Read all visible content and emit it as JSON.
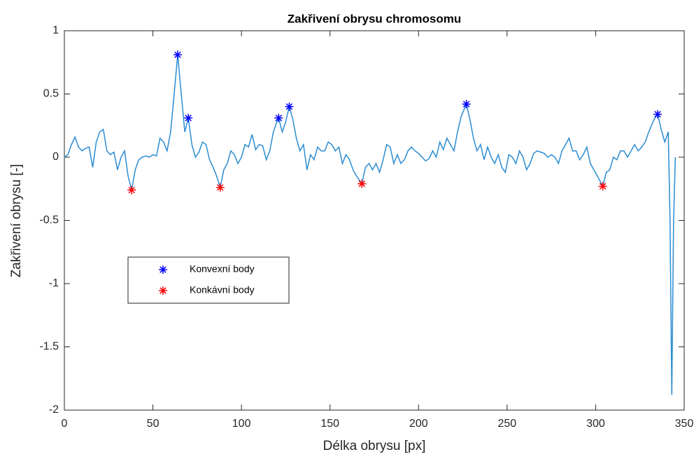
{
  "chart_data": {
    "type": "line",
    "title": "Zakřivení obrysu chromosomu",
    "xlabel": "Délka obrysu [px]",
    "ylabel": "Zakřivení obrysu [-]",
    "xlim": [
      0,
      350
    ],
    "ylim": [
      -2,
      1
    ],
    "xticks": [
      0,
      50,
      100,
      150,
      200,
      250,
      300,
      350
    ],
    "yticks": [
      1,
      0.5,
      0,
      -0.5,
      -1,
      -1.5,
      -2
    ],
    "grid": false,
    "legend": "middle left",
    "series": [
      {
        "style": "line",
        "color": "#2b8cd1",
        "x": [
          0,
          2,
          4,
          6,
          8,
          10,
          12,
          14,
          16,
          18,
          20,
          22,
          24,
          26,
          28,
          30,
          32,
          34,
          36,
          38,
          40,
          42,
          44,
          46,
          48,
          50,
          52,
          54,
          56,
          58,
          60,
          62,
          64,
          66,
          68,
          70,
          72,
          74,
          76,
          78,
          80,
          82,
          84,
          86,
          88,
          90,
          92,
          94,
          96,
          98,
          100,
          102,
          104,
          106,
          108,
          110,
          112,
          114,
          116,
          118,
          120,
          121,
          123,
          125,
          127,
          129,
          131,
          133,
          135,
          137,
          139,
          141,
          143,
          145,
          147,
          149,
          151,
          153,
          155,
          157,
          159,
          161,
          163,
          165,
          168,
          170,
          172,
          174,
          176,
          178,
          180,
          182,
          184,
          186,
          188,
          190,
          192,
          194,
          196,
          198,
          200,
          202,
          204,
          206,
          208,
          210,
          212,
          214,
          216,
          218,
          220,
          222,
          224,
          227,
          229,
          231,
          233,
          235,
          237,
          239,
          241,
          243,
          245,
          247,
          249,
          251,
          253,
          255,
          257,
          259,
          261,
          263,
          265,
          267,
          269,
          271,
          273,
          275,
          277,
          279,
          281,
          283,
          285,
          287,
          289,
          291,
          293,
          295,
          297,
          299,
          301,
          304,
          306,
          308,
          310,
          312,
          314,
          316,
          318,
          320,
          322,
          324,
          326,
          328,
          330,
          333,
          335,
          337,
          339,
          341,
          342,
          343,
          344,
          345
        ],
        "values": [
          0,
          0.02,
          0.1,
          0.16,
          0.08,
          0.05,
          0.07,
          0.08,
          -0.08,
          0.12,
          0.2,
          0.22,
          0.05,
          0.02,
          0.04,
          -0.1,
          0,
          0.05,
          -0.15,
          -0.26,
          -0.1,
          -0.02,
          0,
          0.01,
          0,
          0.02,
          0.01,
          0.15,
          0.12,
          0.05,
          0.2,
          0.5,
          0.81,
          0.5,
          0.2,
          0.31,
          0.1,
          0,
          0.04,
          0.12,
          0.1,
          -0.02,
          -0.08,
          -0.15,
          -0.24,
          -0.1,
          -0.05,
          0.05,
          0.02,
          -0.05,
          0,
          0.1,
          0.08,
          0.18,
          0.06,
          0.1,
          0.09,
          -0.02,
          0.05,
          0.2,
          0.28,
          0.31,
          0.2,
          0.28,
          0.4,
          0.3,
          0.15,
          0.05,
          0.1,
          -0.1,
          0.02,
          -0.02,
          0.08,
          0.05,
          0.05,
          0.12,
          0.1,
          0.05,
          0.08,
          -0.05,
          0.02,
          -0.02,
          -0.1,
          -0.15,
          -0.21,
          -0.08,
          -0.05,
          -0.1,
          -0.05,
          -0.12,
          -0.02,
          0.1,
          0.08,
          -0.05,
          0.02,
          -0.05,
          -0.02,
          0.05,
          0.08,
          0.05,
          0.03,
          0,
          -0.03,
          -0.01,
          0.05,
          0,
          0.12,
          0.06,
          0.15,
          0.1,
          0.05,
          0.2,
          0.32,
          0.42,
          0.3,
          0.15,
          0.05,
          0.1,
          -0.02,
          0.08,
          0,
          -0.05,
          0.02,
          -0.08,
          -0.12,
          0.02,
          0,
          -0.05,
          0.05,
          0,
          -0.1,
          -0.05,
          0.03,
          0.05,
          0.04,
          0.03,
          0,
          0.02,
          0,
          -0.05,
          0.05,
          0.1,
          0.15,
          0.05,
          0.05,
          -0.02,
          0.02,
          0.08,
          -0.05,
          -0.1,
          -0.15,
          -0.23,
          -0.12,
          -0.1,
          0,
          -0.02,
          0.05,
          0.05,
          0,
          0.05,
          0.1,
          0.05,
          0.08,
          0.12,
          0.2,
          0.3,
          0.34,
          0.22,
          0.12,
          0.2,
          -0.5,
          -1.88,
          -0.5,
          0
        ]
      },
      {
        "style": "marker",
        "marker": "asterisk",
        "name": "Konvexní body",
        "color": "#0000ff",
        "x": [
          64,
          70,
          121,
          127,
          227,
          335
        ],
        "values": [
          0.81,
          0.31,
          0.31,
          0.4,
          0.42,
          0.34
        ]
      },
      {
        "style": "marker",
        "marker": "asterisk",
        "name": "Konkávní body",
        "color": "#ff0000",
        "x": [
          38,
          88,
          168,
          304
        ],
        "values": [
          -0.26,
          -0.24,
          -0.21,
          -0.23
        ]
      }
    ]
  }
}
